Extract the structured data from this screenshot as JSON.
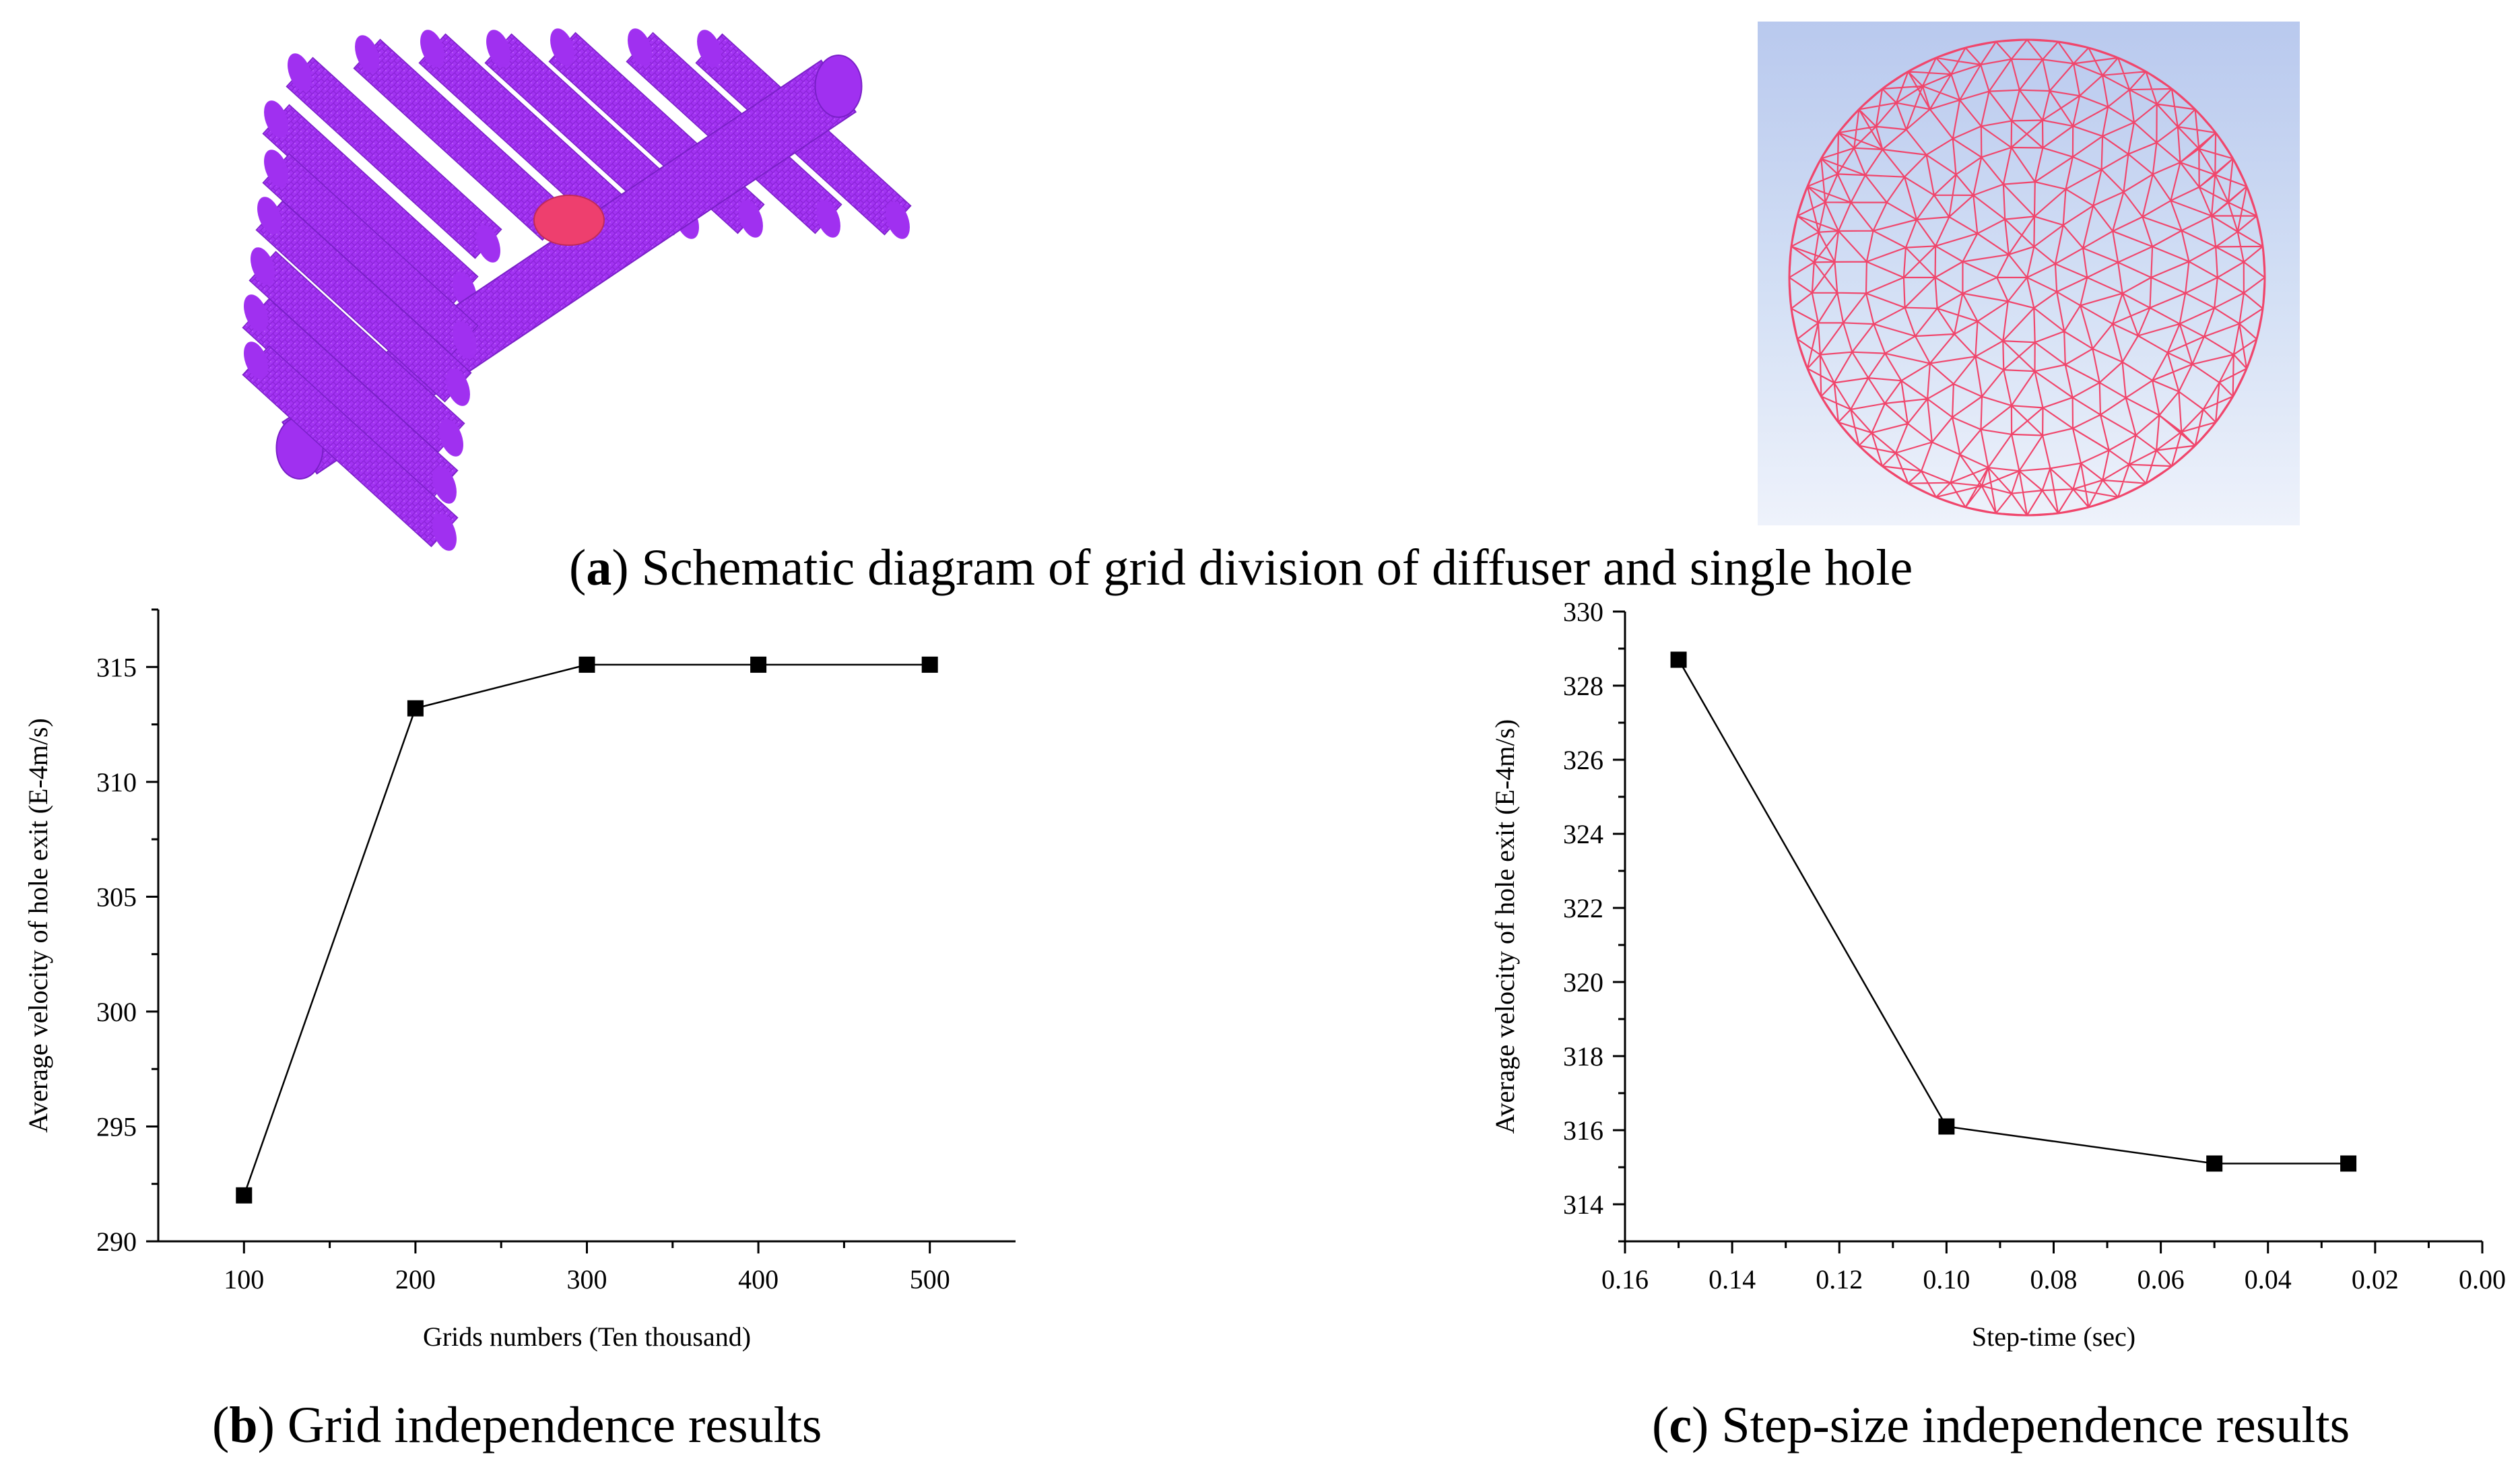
{
  "captions": {
    "a_letter": "a",
    "a_text": " Schematic diagram of grid division of diffuser and single hole",
    "b_letter": "b",
    "b_text": " Grid independence results",
    "c_letter": "c",
    "c_text": " Step-size independence results"
  },
  "colors": {
    "mesh_purple": "#a030f0",
    "mesh_purple_dark": "#7a20c8",
    "hole_pink": "#ee3f6e",
    "circle_mesh": "#f0466c"
  },
  "chart_data": [
    {
      "type": "line",
      "title": "",
      "xlabel": "Grids numbers (Ten thousand)",
      "ylabel": "Average velocity of hole exit (E-4m/s)",
      "x": [
        100,
        200,
        300,
        400,
        500
      ],
      "values": [
        292,
        313.2,
        315.1,
        315.1,
        315.1
      ],
      "xlim": [
        50,
        550
      ],
      "ylim": [
        290,
        317.5
      ],
      "xticks": [
        100,
        200,
        300,
        400,
        500
      ],
      "yticks": [
        290,
        295,
        300,
        305,
        310,
        315
      ],
      "xtick_labels": [
        "100",
        "200",
        "300",
        "400",
        "500"
      ],
      "ytick_labels": [
        "290",
        "295",
        "300",
        "305",
        "310",
        "315"
      ],
      "marker": "square",
      "grid": false
    },
    {
      "type": "line",
      "title": "",
      "xlabel": "Step-time (sec)",
      "ylabel": "Average velocity of hole exit (E-4m/s)",
      "x": [
        0.15,
        0.1,
        0.05,
        0.025
      ],
      "values": [
        328.7,
        316.1,
        315.1,
        315.1
      ],
      "xlim": [
        0.16,
        0.0
      ],
      "x_reversed": true,
      "ylim": [
        313,
        330
      ],
      "xticks": [
        0.16,
        0.14,
        0.12,
        0.1,
        0.08,
        0.06,
        0.04,
        0.02,
        0.0
      ],
      "yticks": [
        314,
        316,
        318,
        320,
        322,
        324,
        326,
        328,
        330
      ],
      "xtick_labels": [
        "0.16",
        "0.14",
        "0.12",
        "0.10",
        "0.08",
        "0.06",
        "0.04",
        "0.02",
        "0.00"
      ],
      "ytick_labels": [
        "314",
        "316",
        "318",
        "320",
        "322",
        "324",
        "326",
        "328",
        "330"
      ],
      "marker": "square",
      "grid": false
    }
  ]
}
